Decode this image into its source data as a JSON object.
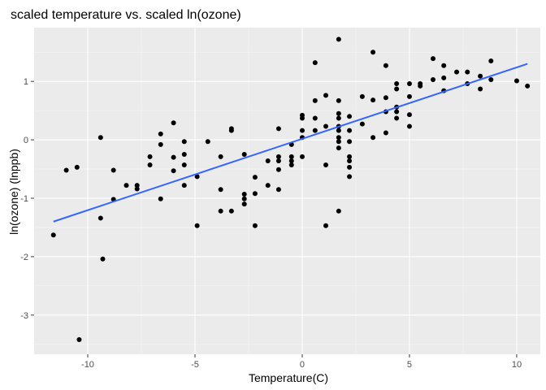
{
  "chart_data": {
    "type": "scatter",
    "title": "scaled temperature vs. scaled ln(ozone)",
    "xlabel": "Temperature(C)",
    "ylabel": "ln(ozone) (lnppb)",
    "xlim": [
      -12.5,
      11.1
    ],
    "ylim": [
      -3.67,
      1.92
    ],
    "xticks": [
      -10,
      -5,
      0,
      5,
      10
    ],
    "yticks": [
      -3,
      -2,
      -1,
      0,
      1
    ],
    "xtick_labels": [
      "-10",
      "-5",
      "0",
      "5",
      "10"
    ],
    "ytick_labels": [
      "-3",
      "-2",
      "-1",
      "0",
      "1"
    ],
    "grid": true,
    "panel_background": "#ebebeb",
    "point_color": "#000000",
    "fit_line_color": "#3366ff",
    "points": [
      {
        "x": -11.6,
        "y": -1.63
      },
      {
        "x": -11.0,
        "y": -0.52
      },
      {
        "x": -10.5,
        "y": -0.47
      },
      {
        "x": -10.4,
        "y": -3.42
      },
      {
        "x": -9.4,
        "y": 0.04
      },
      {
        "x": -9.4,
        "y": -1.34
      },
      {
        "x": -9.3,
        "y": -2.04
      },
      {
        "x": -8.8,
        "y": -0.52
      },
      {
        "x": -8.8,
        "y": -1.02
      },
      {
        "x": -8.2,
        "y": -0.78
      },
      {
        "x": -7.7,
        "y": -0.84
      },
      {
        "x": -7.7,
        "y": -0.78
      },
      {
        "x": -7.1,
        "y": -0.29
      },
      {
        "x": -7.1,
        "y": -0.43
      },
      {
        "x": -6.6,
        "y": 0.1
      },
      {
        "x": -6.6,
        "y": -0.08
      },
      {
        "x": -6.6,
        "y": -1.01
      },
      {
        "x": -6.0,
        "y": 0.29
      },
      {
        "x": -6.0,
        "y": -0.3
      },
      {
        "x": -6.0,
        "y": -0.53
      },
      {
        "x": -5.5,
        "y": -0.03
      },
      {
        "x": -5.5,
        "y": -0.25
      },
      {
        "x": -5.5,
        "y": -0.43
      },
      {
        "x": -5.5,
        "y": -0.78
      },
      {
        "x": -4.9,
        "y": -0.63
      },
      {
        "x": -4.9,
        "y": -1.47
      },
      {
        "x": -4.4,
        "y": -0.03
      },
      {
        "x": -3.8,
        "y": -0.29
      },
      {
        "x": -3.8,
        "y": -0.85
      },
      {
        "x": -3.8,
        "y": -1.22
      },
      {
        "x": -3.3,
        "y": 0.19
      },
      {
        "x": -3.3,
        "y": 0.16
      },
      {
        "x": -3.3,
        "y": -1.22
      },
      {
        "x": -2.7,
        "y": -0.25
      },
      {
        "x": -2.7,
        "y": -0.93
      },
      {
        "x": -2.7,
        "y": -1.01
      },
      {
        "x": -2.7,
        "y": -1.1
      },
      {
        "x": -2.2,
        "y": -0.64
      },
      {
        "x": -2.2,
        "y": -0.92
      },
      {
        "x": -2.2,
        "y": -1.47
      },
      {
        "x": -1.6,
        "y": -0.36
      },
      {
        "x": -1.6,
        "y": -0.78
      },
      {
        "x": -1.1,
        "y": 0.19
      },
      {
        "x": -1.1,
        "y": -0.29
      },
      {
        "x": -1.1,
        "y": -0.36
      },
      {
        "x": -1.1,
        "y": -0.51
      },
      {
        "x": -1.1,
        "y": -0.85
      },
      {
        "x": -0.5,
        "y": -0.08
      },
      {
        "x": -0.5,
        "y": -0.29
      },
      {
        "x": -0.5,
        "y": -0.43
      },
      {
        "x": -0.5,
        "y": -0.36
      },
      {
        "x": 0.0,
        "y": 0.42
      },
      {
        "x": 0.0,
        "y": 0.37
      },
      {
        "x": 0.0,
        "y": 0.16
      },
      {
        "x": 0.0,
        "y": 0.04
      },
      {
        "x": 0.0,
        "y": -0.29
      },
      {
        "x": 0.6,
        "y": 1.32
      },
      {
        "x": 0.6,
        "y": 0.67
      },
      {
        "x": 0.6,
        "y": 0.37
      },
      {
        "x": 0.6,
        "y": 0.16
      },
      {
        "x": 1.1,
        "y": 0.76
      },
      {
        "x": 1.1,
        "y": 0.23
      },
      {
        "x": 1.1,
        "y": -0.43
      },
      {
        "x": 1.1,
        "y": -1.47
      },
      {
        "x": 1.7,
        "y": 1.72
      },
      {
        "x": 1.7,
        "y": 0.67
      },
      {
        "x": 1.7,
        "y": 0.45
      },
      {
        "x": 1.7,
        "y": 0.37
      },
      {
        "x": 1.7,
        "y": 0.23
      },
      {
        "x": 1.7,
        "y": 0.16
      },
      {
        "x": 1.7,
        "y": 0.04
      },
      {
        "x": 1.7,
        "y": -0.03
      },
      {
        "x": 1.7,
        "y": -0.14
      },
      {
        "x": 1.7,
        "y": -1.22
      },
      {
        "x": 2.2,
        "y": 0.4
      },
      {
        "x": 2.2,
        "y": 0.16
      },
      {
        "x": 2.2,
        "y": -0.03
      },
      {
        "x": 2.2,
        "y": -0.29
      },
      {
        "x": 2.2,
        "y": -0.36
      },
      {
        "x": 2.2,
        "y": -0.47
      },
      {
        "x": 2.2,
        "y": -0.63
      },
      {
        "x": 2.8,
        "y": 0.74
      },
      {
        "x": 2.8,
        "y": 0.27
      },
      {
        "x": 3.3,
        "y": 1.5
      },
      {
        "x": 3.3,
        "y": 0.68
      },
      {
        "x": 3.3,
        "y": 0.04
      },
      {
        "x": 3.9,
        "y": 1.27
      },
      {
        "x": 3.9,
        "y": 0.72
      },
      {
        "x": 3.9,
        "y": 0.48
      },
      {
        "x": 3.9,
        "y": 0.12
      },
      {
        "x": 4.4,
        "y": 0.96
      },
      {
        "x": 4.4,
        "y": 0.87
      },
      {
        "x": 4.4,
        "y": 0.56
      },
      {
        "x": 4.4,
        "y": 0.48
      },
      {
        "x": 4.4,
        "y": 0.37
      },
      {
        "x": 5.0,
        "y": 0.96
      },
      {
        "x": 5.0,
        "y": 0.74
      },
      {
        "x": 5.0,
        "y": 0.43
      },
      {
        "x": 5.0,
        "y": 0.23
      },
      {
        "x": 5.5,
        "y": 0.96
      },
      {
        "x": 5.5,
        "y": 0.92
      },
      {
        "x": 6.1,
        "y": 1.39
      },
      {
        "x": 6.1,
        "y": 1.03
      },
      {
        "x": 6.6,
        "y": 1.27
      },
      {
        "x": 6.6,
        "y": 1.06
      },
      {
        "x": 6.6,
        "y": 0.84
      },
      {
        "x": 7.2,
        "y": 1.16
      },
      {
        "x": 7.7,
        "y": 1.16
      },
      {
        "x": 7.7,
        "y": 0.96
      },
      {
        "x": 8.3,
        "y": 1.09
      },
      {
        "x": 8.3,
        "y": 0.87
      },
      {
        "x": 8.8,
        "y": 1.35
      },
      {
        "x": 8.8,
        "y": 1.03
      },
      {
        "x": 10.0,
        "y": 1.01
      },
      {
        "x": 10.5,
        "y": 0.92
      }
    ],
    "fit_line": {
      "x": [
        -11.6,
        10.5
      ],
      "y": [
        -1.4,
        1.3
      ]
    }
  }
}
